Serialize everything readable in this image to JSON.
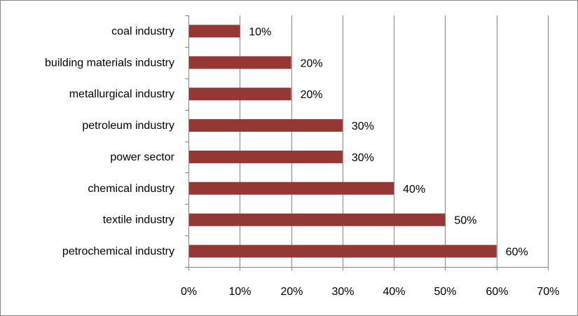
{
  "chart_data": {
    "type": "bar",
    "orientation": "horizontal",
    "categories": [
      "coal industry",
      "building materials industry",
      "metallurgical industry",
      "petroleum industry",
      "power sector",
      "chemical industry",
      "textile industry",
      "petrochemical industry"
    ],
    "values": [
      10,
      20,
      20,
      30,
      30,
      40,
      50,
      60
    ],
    "data_labels": [
      "10%",
      "20%",
      "20%",
      "30%",
      "30%",
      "40%",
      "50%",
      "60%"
    ],
    "x_ticks": [
      "0%",
      "10%",
      "20%",
      "30%",
      "40%",
      "50%",
      "60%",
      "70%"
    ],
    "xlim": [
      0,
      70
    ],
    "grid": "vertical",
    "legend": "none",
    "colors": {
      "bar": "#953735",
      "grid": "#868686",
      "axis": "#868686",
      "text": "#000000"
    }
  }
}
